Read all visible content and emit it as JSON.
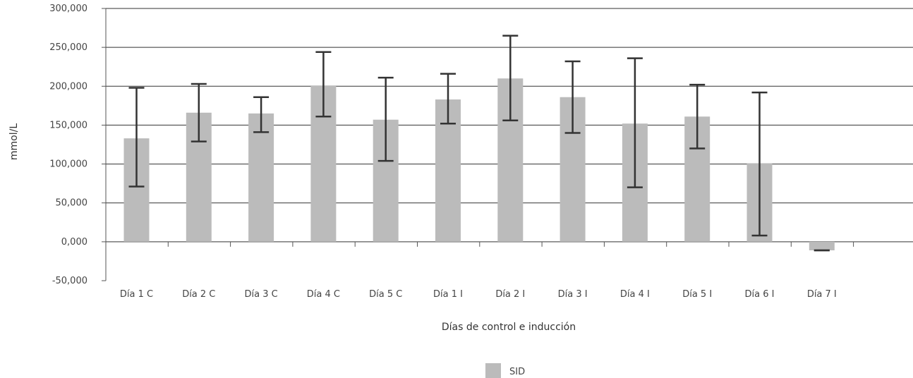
{
  "chart_data": {
    "type": "bar",
    "categories": [
      "Día 1 C",
      "Día 2 C",
      "Día 3 C",
      "Día 4 C",
      "Día 5 C",
      "Día 1 I",
      "Día 2 I",
      "Día 3 I",
      "Día 4 I",
      "Día 5 I",
      "Día 6 I",
      "Día 7 I"
    ],
    "series": [
      {
        "name": "SID",
        "values": [
          133,
          166,
          165,
          201,
          157,
          183,
          210,
          186,
          152,
          161,
          101,
          -11
        ],
        "error_low": [
          71,
          129,
          141,
          161,
          104,
          152,
          156,
          140,
          70,
          120,
          8,
          -11
        ],
        "error_high": [
          198,
          203,
          186,
          244,
          211,
          216,
          265,
          232,
          236,
          202,
          192,
          -11
        ]
      }
    ],
    "xlabel": "Días de control e inducción",
    "ylabel": "mmol/L",
    "ylim": [
      -50,
      300
    ],
    "yticks": [
      -50,
      0,
      50,
      100,
      150,
      200,
      250,
      300
    ],
    "ytick_labels": [
      "-50,000",
      "0,000",
      "50,000",
      "100,000",
      "150,000",
      "200,000",
      "250,000",
      "300,000"
    ],
    "grid": true,
    "legend": {
      "position": "bottom-center",
      "entries": [
        "SID"
      ]
    },
    "colors": {
      "bar": "#bbbbbb",
      "error_bar": "#333333",
      "gridline": "#333333",
      "axis": "#555555"
    }
  }
}
